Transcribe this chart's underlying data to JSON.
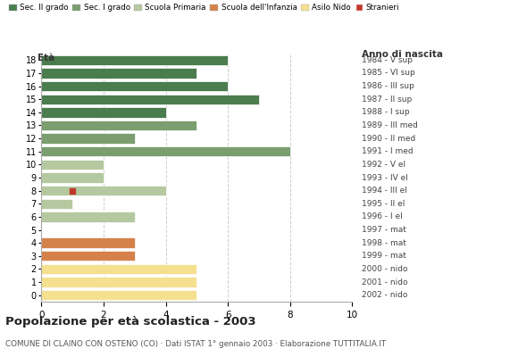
{
  "ages": [
    18,
    17,
    16,
    15,
    14,
    13,
    12,
    11,
    10,
    9,
    8,
    7,
    6,
    5,
    4,
    3,
    2,
    1,
    0
  ],
  "anno_nascita": [
    "1984 - V sup",
    "1985 - VI sup",
    "1986 - III sup",
    "1987 - II sup",
    "1988 - I sup",
    "1989 - III med",
    "1990 - II med",
    "1991 - I med",
    "1992 - V el",
    "1993 - IV el",
    "1994 - III el",
    "1995 - II el",
    "1996 - I el",
    "1997 - mat",
    "1998 - mat",
    "1999 - mat",
    "2000 - nido",
    "2001 - nido",
    "2002 - nido"
  ],
  "values": [
    6,
    5,
    6,
    7,
    4,
    5,
    3,
    8,
    2,
    2,
    4,
    1,
    3,
    0,
    3,
    3,
    5,
    5,
    5
  ],
  "bar_colors_by_age": {
    "18": "#4a7c4e",
    "17": "#4a7c4e",
    "16": "#4a7c4e",
    "15": "#4a7c4e",
    "14": "#4a7c4e",
    "13": "#7a9e6e",
    "12": "#7a9e6e",
    "11": "#7a9e6e",
    "10": "#b5c9a0",
    "9": "#b5c9a0",
    "8": "#b5c9a0",
    "7": "#b5c9a0",
    "6": "#b5c9a0",
    "5": "#d4824a",
    "4": "#d4824a",
    "3": "#d4824a",
    "2": "#f5e090",
    "1": "#f5e090",
    "0": "#f5e090"
  },
  "stranieri_age": 8,
  "stranieri_value": 1,
  "stranieri_color": "#c0392b",
  "legend_labels": [
    "Sec. II grado",
    "Sec. I grado",
    "Scuola Primaria",
    "Scuola dell'Infanzia",
    "Asilo Nido",
    "Stranieri"
  ],
  "legend_colors": [
    "#4a7c4e",
    "#7a9e6e",
    "#b5c9a0",
    "#d4824a",
    "#f5e090",
    "#c0392b"
  ],
  "title": "Popolazione per età scolastica - 2003",
  "subtitle": "COMUNE DI CLAINO CON OSTENO (CO) · Dati ISTAT 1° gennaio 2003 · Elaborazione TUTTITALIA.IT",
  "label_eta": "Età",
  "label_anno": "Anno di nascita",
  "xlim": [
    0,
    10
  ],
  "xticks": [
    0,
    2,
    4,
    6,
    8,
    10
  ],
  "grid_color": "#cccccc",
  "bg_color": "#ffffff",
  "bar_height": 0.78
}
